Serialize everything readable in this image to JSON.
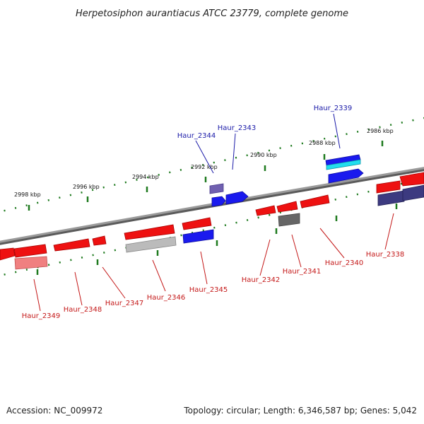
{
  "title": "Herpetosiphon aurantiacus ATCC 23779, complete genome",
  "footer": {
    "accession": "Accession: NC_009972",
    "topology": "Topology: circular; Length: 6,346,587 bp; Genes: 5,042"
  },
  "scale": {
    "ticks": [
      "2998 kbp",
      "2996 kbp",
      "2994 kbp",
      "2992 kbp",
      "2990 kbp",
      "2988 kbp",
      "2986 kbp"
    ]
  },
  "genes": {
    "forward": [
      "Haur_2344",
      "Haur_2343",
      "Haur_2339"
    ],
    "reverse": [
      "Haur_2349",
      "Haur_2348",
      "Haur_2347",
      "Haur_2346",
      "Haur_2345",
      "Haur_2342",
      "Haur_2341",
      "Haur_2340",
      "Haur_2338"
    ]
  },
  "colors": {
    "backbone": "#8a8a8a",
    "tick": "#1e7a1e",
    "red": "#ee1111",
    "blue": "#1a1aee",
    "navy": "#3c3a80",
    "cyan": "#22ddee",
    "gray": "#666666",
    "lightgray": "#bbbbbb",
    "pink": "#f08080",
    "purple": "#7060b0",
    "fwd_label": "#1a1aa8",
    "rev_label": "#c41818"
  }
}
